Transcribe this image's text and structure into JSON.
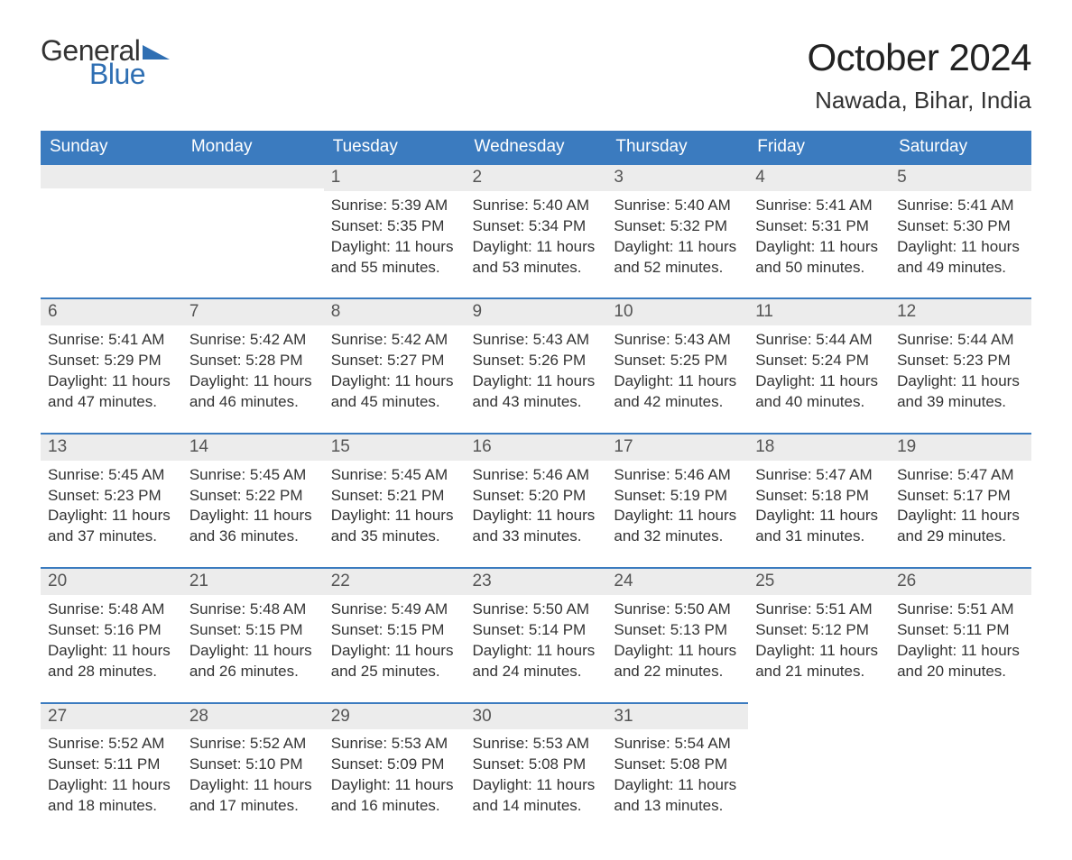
{
  "logo": {
    "word1": "General",
    "word2": "Blue",
    "word1_color": "#333333",
    "word2_color": "#2f6fb3",
    "triangle_color": "#2f6fb3"
  },
  "title": "October 2024",
  "location": "Nawada, Bihar, India",
  "colors": {
    "header_bg": "#3b7bbf",
    "header_text": "#ffffff",
    "daynum_bg": "#ececec",
    "daynum_border": "#3b7bbf",
    "body_text": "#333333",
    "page_bg": "#ffffff"
  },
  "fonts": {
    "title_size_pt": 32,
    "location_size_pt": 20,
    "header_size_pt": 14,
    "daynum_size_pt": 14,
    "body_size_pt": 13
  },
  "weekdays": [
    "Sunday",
    "Monday",
    "Tuesday",
    "Wednesday",
    "Thursday",
    "Friday",
    "Saturday"
  ],
  "weeks": [
    [
      null,
      null,
      {
        "n": "1",
        "sunrise": "Sunrise: 5:39 AM",
        "sunset": "Sunset: 5:35 PM",
        "day1": "Daylight: 11 hours",
        "day2": "and 55 minutes."
      },
      {
        "n": "2",
        "sunrise": "Sunrise: 5:40 AM",
        "sunset": "Sunset: 5:34 PM",
        "day1": "Daylight: 11 hours",
        "day2": "and 53 minutes."
      },
      {
        "n": "3",
        "sunrise": "Sunrise: 5:40 AM",
        "sunset": "Sunset: 5:32 PM",
        "day1": "Daylight: 11 hours",
        "day2": "and 52 minutes."
      },
      {
        "n": "4",
        "sunrise": "Sunrise: 5:41 AM",
        "sunset": "Sunset: 5:31 PM",
        "day1": "Daylight: 11 hours",
        "day2": "and 50 minutes."
      },
      {
        "n": "5",
        "sunrise": "Sunrise: 5:41 AM",
        "sunset": "Sunset: 5:30 PM",
        "day1": "Daylight: 11 hours",
        "day2": "and 49 minutes."
      }
    ],
    [
      {
        "n": "6",
        "sunrise": "Sunrise: 5:41 AM",
        "sunset": "Sunset: 5:29 PM",
        "day1": "Daylight: 11 hours",
        "day2": "and 47 minutes."
      },
      {
        "n": "7",
        "sunrise": "Sunrise: 5:42 AM",
        "sunset": "Sunset: 5:28 PM",
        "day1": "Daylight: 11 hours",
        "day2": "and 46 minutes."
      },
      {
        "n": "8",
        "sunrise": "Sunrise: 5:42 AM",
        "sunset": "Sunset: 5:27 PM",
        "day1": "Daylight: 11 hours",
        "day2": "and 45 minutes."
      },
      {
        "n": "9",
        "sunrise": "Sunrise: 5:43 AM",
        "sunset": "Sunset: 5:26 PM",
        "day1": "Daylight: 11 hours",
        "day2": "and 43 minutes."
      },
      {
        "n": "10",
        "sunrise": "Sunrise: 5:43 AM",
        "sunset": "Sunset: 5:25 PM",
        "day1": "Daylight: 11 hours",
        "day2": "and 42 minutes."
      },
      {
        "n": "11",
        "sunrise": "Sunrise: 5:44 AM",
        "sunset": "Sunset: 5:24 PM",
        "day1": "Daylight: 11 hours",
        "day2": "and 40 minutes."
      },
      {
        "n": "12",
        "sunrise": "Sunrise: 5:44 AM",
        "sunset": "Sunset: 5:23 PM",
        "day1": "Daylight: 11 hours",
        "day2": "and 39 minutes."
      }
    ],
    [
      {
        "n": "13",
        "sunrise": "Sunrise: 5:45 AM",
        "sunset": "Sunset: 5:23 PM",
        "day1": "Daylight: 11 hours",
        "day2": "and 37 minutes."
      },
      {
        "n": "14",
        "sunrise": "Sunrise: 5:45 AM",
        "sunset": "Sunset: 5:22 PM",
        "day1": "Daylight: 11 hours",
        "day2": "and 36 minutes."
      },
      {
        "n": "15",
        "sunrise": "Sunrise: 5:45 AM",
        "sunset": "Sunset: 5:21 PM",
        "day1": "Daylight: 11 hours",
        "day2": "and 35 minutes."
      },
      {
        "n": "16",
        "sunrise": "Sunrise: 5:46 AM",
        "sunset": "Sunset: 5:20 PM",
        "day1": "Daylight: 11 hours",
        "day2": "and 33 minutes."
      },
      {
        "n": "17",
        "sunrise": "Sunrise: 5:46 AM",
        "sunset": "Sunset: 5:19 PM",
        "day1": "Daylight: 11 hours",
        "day2": "and 32 minutes."
      },
      {
        "n": "18",
        "sunrise": "Sunrise: 5:47 AM",
        "sunset": "Sunset: 5:18 PM",
        "day1": "Daylight: 11 hours",
        "day2": "and 31 minutes."
      },
      {
        "n": "19",
        "sunrise": "Sunrise: 5:47 AM",
        "sunset": "Sunset: 5:17 PM",
        "day1": "Daylight: 11 hours",
        "day2": "and 29 minutes."
      }
    ],
    [
      {
        "n": "20",
        "sunrise": "Sunrise: 5:48 AM",
        "sunset": "Sunset: 5:16 PM",
        "day1": "Daylight: 11 hours",
        "day2": "and 28 minutes."
      },
      {
        "n": "21",
        "sunrise": "Sunrise: 5:48 AM",
        "sunset": "Sunset: 5:15 PM",
        "day1": "Daylight: 11 hours",
        "day2": "and 26 minutes."
      },
      {
        "n": "22",
        "sunrise": "Sunrise: 5:49 AM",
        "sunset": "Sunset: 5:15 PM",
        "day1": "Daylight: 11 hours",
        "day2": "and 25 minutes."
      },
      {
        "n": "23",
        "sunrise": "Sunrise: 5:50 AM",
        "sunset": "Sunset: 5:14 PM",
        "day1": "Daylight: 11 hours",
        "day2": "and 24 minutes."
      },
      {
        "n": "24",
        "sunrise": "Sunrise: 5:50 AM",
        "sunset": "Sunset: 5:13 PM",
        "day1": "Daylight: 11 hours",
        "day2": "and 22 minutes."
      },
      {
        "n": "25",
        "sunrise": "Sunrise: 5:51 AM",
        "sunset": "Sunset: 5:12 PM",
        "day1": "Daylight: 11 hours",
        "day2": "and 21 minutes."
      },
      {
        "n": "26",
        "sunrise": "Sunrise: 5:51 AM",
        "sunset": "Sunset: 5:11 PM",
        "day1": "Daylight: 11 hours",
        "day2": "and 20 minutes."
      }
    ],
    [
      {
        "n": "27",
        "sunrise": "Sunrise: 5:52 AM",
        "sunset": "Sunset: 5:11 PM",
        "day1": "Daylight: 11 hours",
        "day2": "and 18 minutes."
      },
      {
        "n": "28",
        "sunrise": "Sunrise: 5:52 AM",
        "sunset": "Sunset: 5:10 PM",
        "day1": "Daylight: 11 hours",
        "day2": "and 17 minutes."
      },
      {
        "n": "29",
        "sunrise": "Sunrise: 5:53 AM",
        "sunset": "Sunset: 5:09 PM",
        "day1": "Daylight: 11 hours",
        "day2": "and 16 minutes."
      },
      {
        "n": "30",
        "sunrise": "Sunrise: 5:53 AM",
        "sunset": "Sunset: 5:08 PM",
        "day1": "Daylight: 11 hours",
        "day2": "and 14 minutes."
      },
      {
        "n": "31",
        "sunrise": "Sunrise: 5:54 AM",
        "sunset": "Sunset: 5:08 PM",
        "day1": "Daylight: 11 hours",
        "day2": "and 13 minutes."
      },
      null,
      null
    ]
  ]
}
